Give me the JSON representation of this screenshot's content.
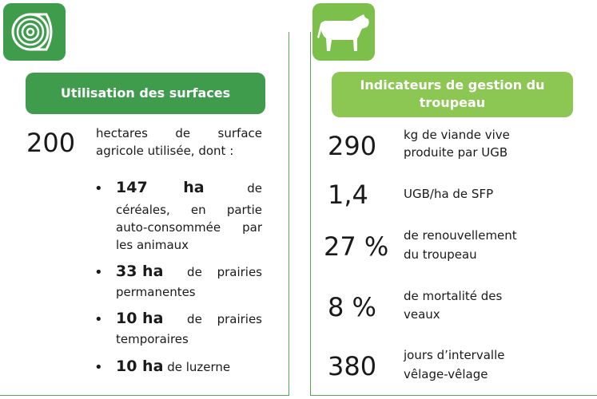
{
  "left": {
    "icon": "hay-bale-icon",
    "title": "Utilisation des surfaces",
    "main_value": "200",
    "main_text_line1": "hectares de surface",
    "main_text_line2": "agricole utilisée, dont :",
    "items": [
      {
        "value": "147 ha",
        "line1_tail": "de",
        "lines": [
          "céréales, en partie",
          "auto-consommée par",
          "les animaux"
        ]
      },
      {
        "value": "33 ha",
        "line1_tail": "de prairies",
        "lines": [
          "permanentes"
        ]
      },
      {
        "value": "10 ha",
        "line1_tail": "de prairies",
        "lines": [
          "temporaires"
        ]
      },
      {
        "value": "10 ha",
        "line1_tail": "de luzerne",
        "lines": []
      }
    ]
  },
  "right": {
    "icon": "cow-icon",
    "title_line1": "Indicateurs de gestion du",
    "title_line2": "troupeau",
    "indicators": [
      {
        "value": "290",
        "line1": "kg de viande vive",
        "line2": "produite par UGB"
      },
      {
        "value": "1,4",
        "line1": "UGB/ha de SFP",
        "line2": ""
      },
      {
        "value": "27 %",
        "line1": "de renouvellement",
        "line2": "du troupeau"
      },
      {
        "value": "8 %",
        "line1": "de mortalité des",
        "line2": "veaux"
      },
      {
        "value": "380",
        "line1": "jours d’intervalle",
        "line2": "vêlage-vêlage"
      }
    ]
  },
  "colors": {
    "dark_green": "#3f9c4d",
    "light_green": "#8cc653",
    "border": "#5aa55a"
  }
}
